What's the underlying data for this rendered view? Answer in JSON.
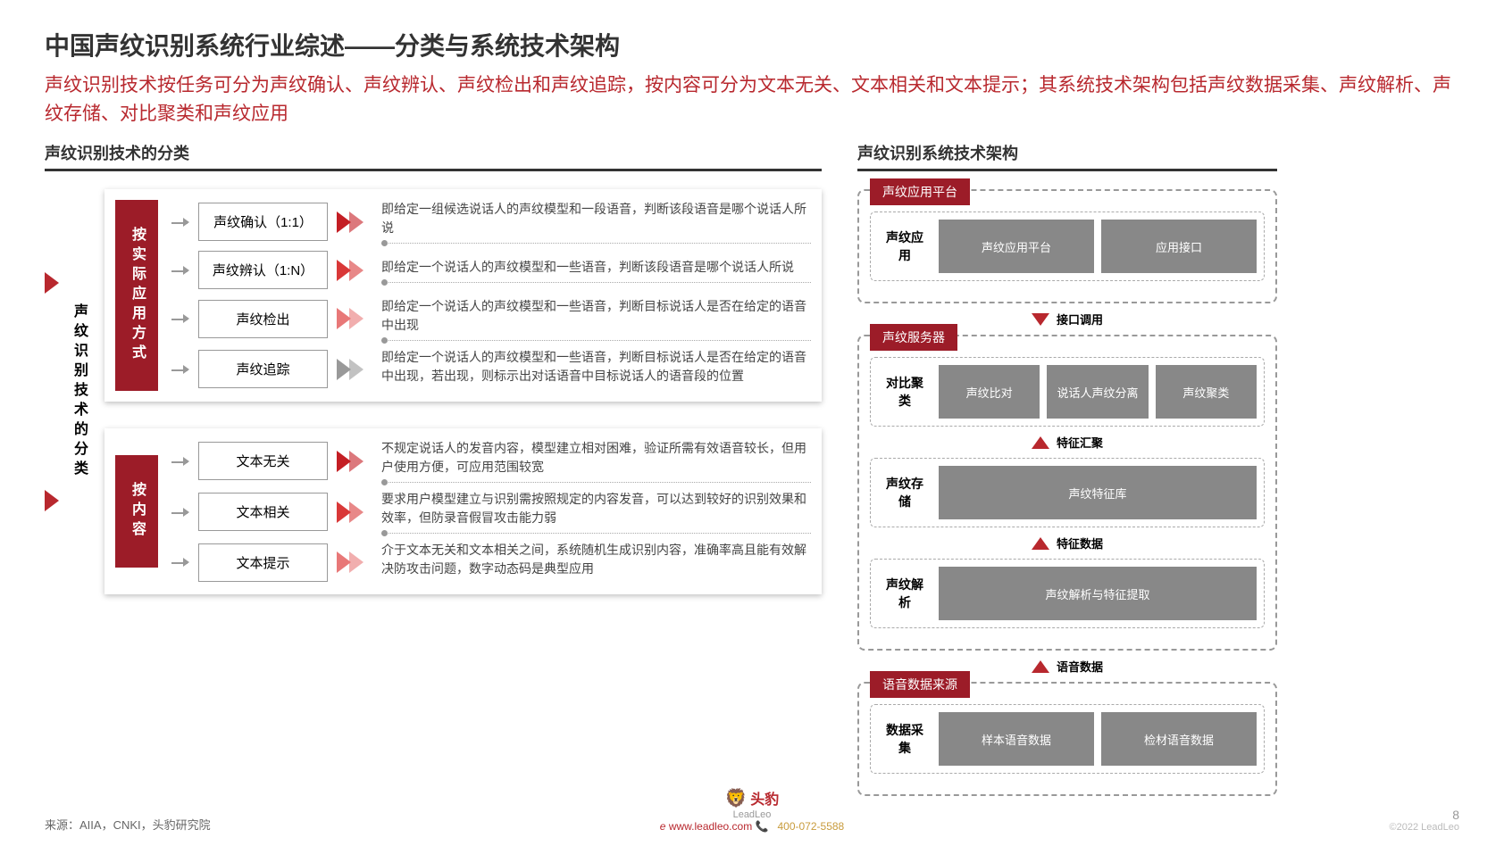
{
  "title": "中国声纹识别系统行业综述——分类与系统技术架构",
  "subtitle": "声纹识别技术按任务可分为声纹确认、声纹辨认、声纹检出和声纹追踪，按内容可分为文本无关、文本相关和文本提示；其系统技术架构包括声纹数据采集、声纹解析、声纹存储、对比聚类和声纹应用",
  "left_header": "声纹识别技术的分类",
  "right_header": "声纹识别系统技术架构",
  "main_label": "声纹识别技术的分类",
  "colors": {
    "primary": "#9c1c28",
    "accent": "#b8282e",
    "chevrons": [
      "#c41e24",
      "#d93838",
      "#e87878",
      "#999999",
      "#c41e24",
      "#d93838",
      "#e87878"
    ]
  },
  "group1": {
    "label": "按实际应用方式",
    "rows": [
      {
        "box": "声纹确认（1:1）",
        "chev": "#c41e24",
        "desc": "即给定一组候选说话人的声纹模型和一段语音，判断该段语音是哪个说话人所说"
      },
      {
        "box": "声纹辨认（1:N）",
        "chev": "#d93838",
        "desc": "即给定一个说话人的声纹模型和一些语音，判断该段语音是哪个说话人所说"
      },
      {
        "box": "声纹检出",
        "chev": "#e87878",
        "desc": "即给定一个说话人的声纹模型和一些语音，判断目标说话人是否在给定的语音中出现"
      },
      {
        "box": "声纹追踪",
        "chev": "#999999",
        "desc": "即给定一个说话人的声纹模型和一些语音，判断目标说话人是否在给定的语音中出现，若出现，则标示出对话语音中目标说话人的语音段的位置"
      }
    ]
  },
  "group2": {
    "label": "按内容",
    "rows": [
      {
        "box": "文本无关",
        "chev": "#c41e24",
        "desc": "不规定说话人的发音内容，模型建立相对困难，验证所需有效语音较长，但用户使用方便，可应用范围较宽"
      },
      {
        "box": "文本相关",
        "chev": "#d93838",
        "desc": "要求用户模型建立与识别需按照规定的内容发音，可以达到较好的识别效果和效率，但防录音假冒攻击能力弱"
      },
      {
        "box": "文本提示",
        "chev": "#e87878",
        "desc": "介于文本无关和文本相关之间，系统随机生成识别内容，准确率高且能有效解决防攻击问题，数字动态码是典型应用"
      }
    ]
  },
  "arch": {
    "block1": {
      "tag": "声纹应用平台",
      "label": "声纹应用",
      "cells": [
        "声纹应用平台",
        "应用接口"
      ]
    },
    "flow1": "接口调用",
    "block2": {
      "tag": "声纹服务器",
      "rows": [
        {
          "label": "对比聚类",
          "cells": [
            "声纹比对",
            "说话人声纹分离",
            "声纹聚类"
          ]
        },
        {
          "flow": "特征汇聚"
        },
        {
          "label": "声纹存储",
          "cells": [
            "声纹特征库"
          ]
        },
        {
          "flow": "特征数据"
        },
        {
          "label": "声纹解析",
          "cells": [
            "声纹解析与特征提取"
          ]
        }
      ]
    },
    "flow2": "语音数据",
    "block3": {
      "tag": "语音数据来源",
      "label": "数据采集",
      "cells": [
        "样本语音数据",
        "检材语音数据"
      ]
    }
  },
  "source": "来源：AIIA，CNKI，头豹研究院",
  "brand": "头豹",
  "brand_en": "LeadLeo",
  "website": "www.leadleo.com",
  "phone": "400-072-5588",
  "page": "8",
  "copyright": "©2022 LeadLeo"
}
